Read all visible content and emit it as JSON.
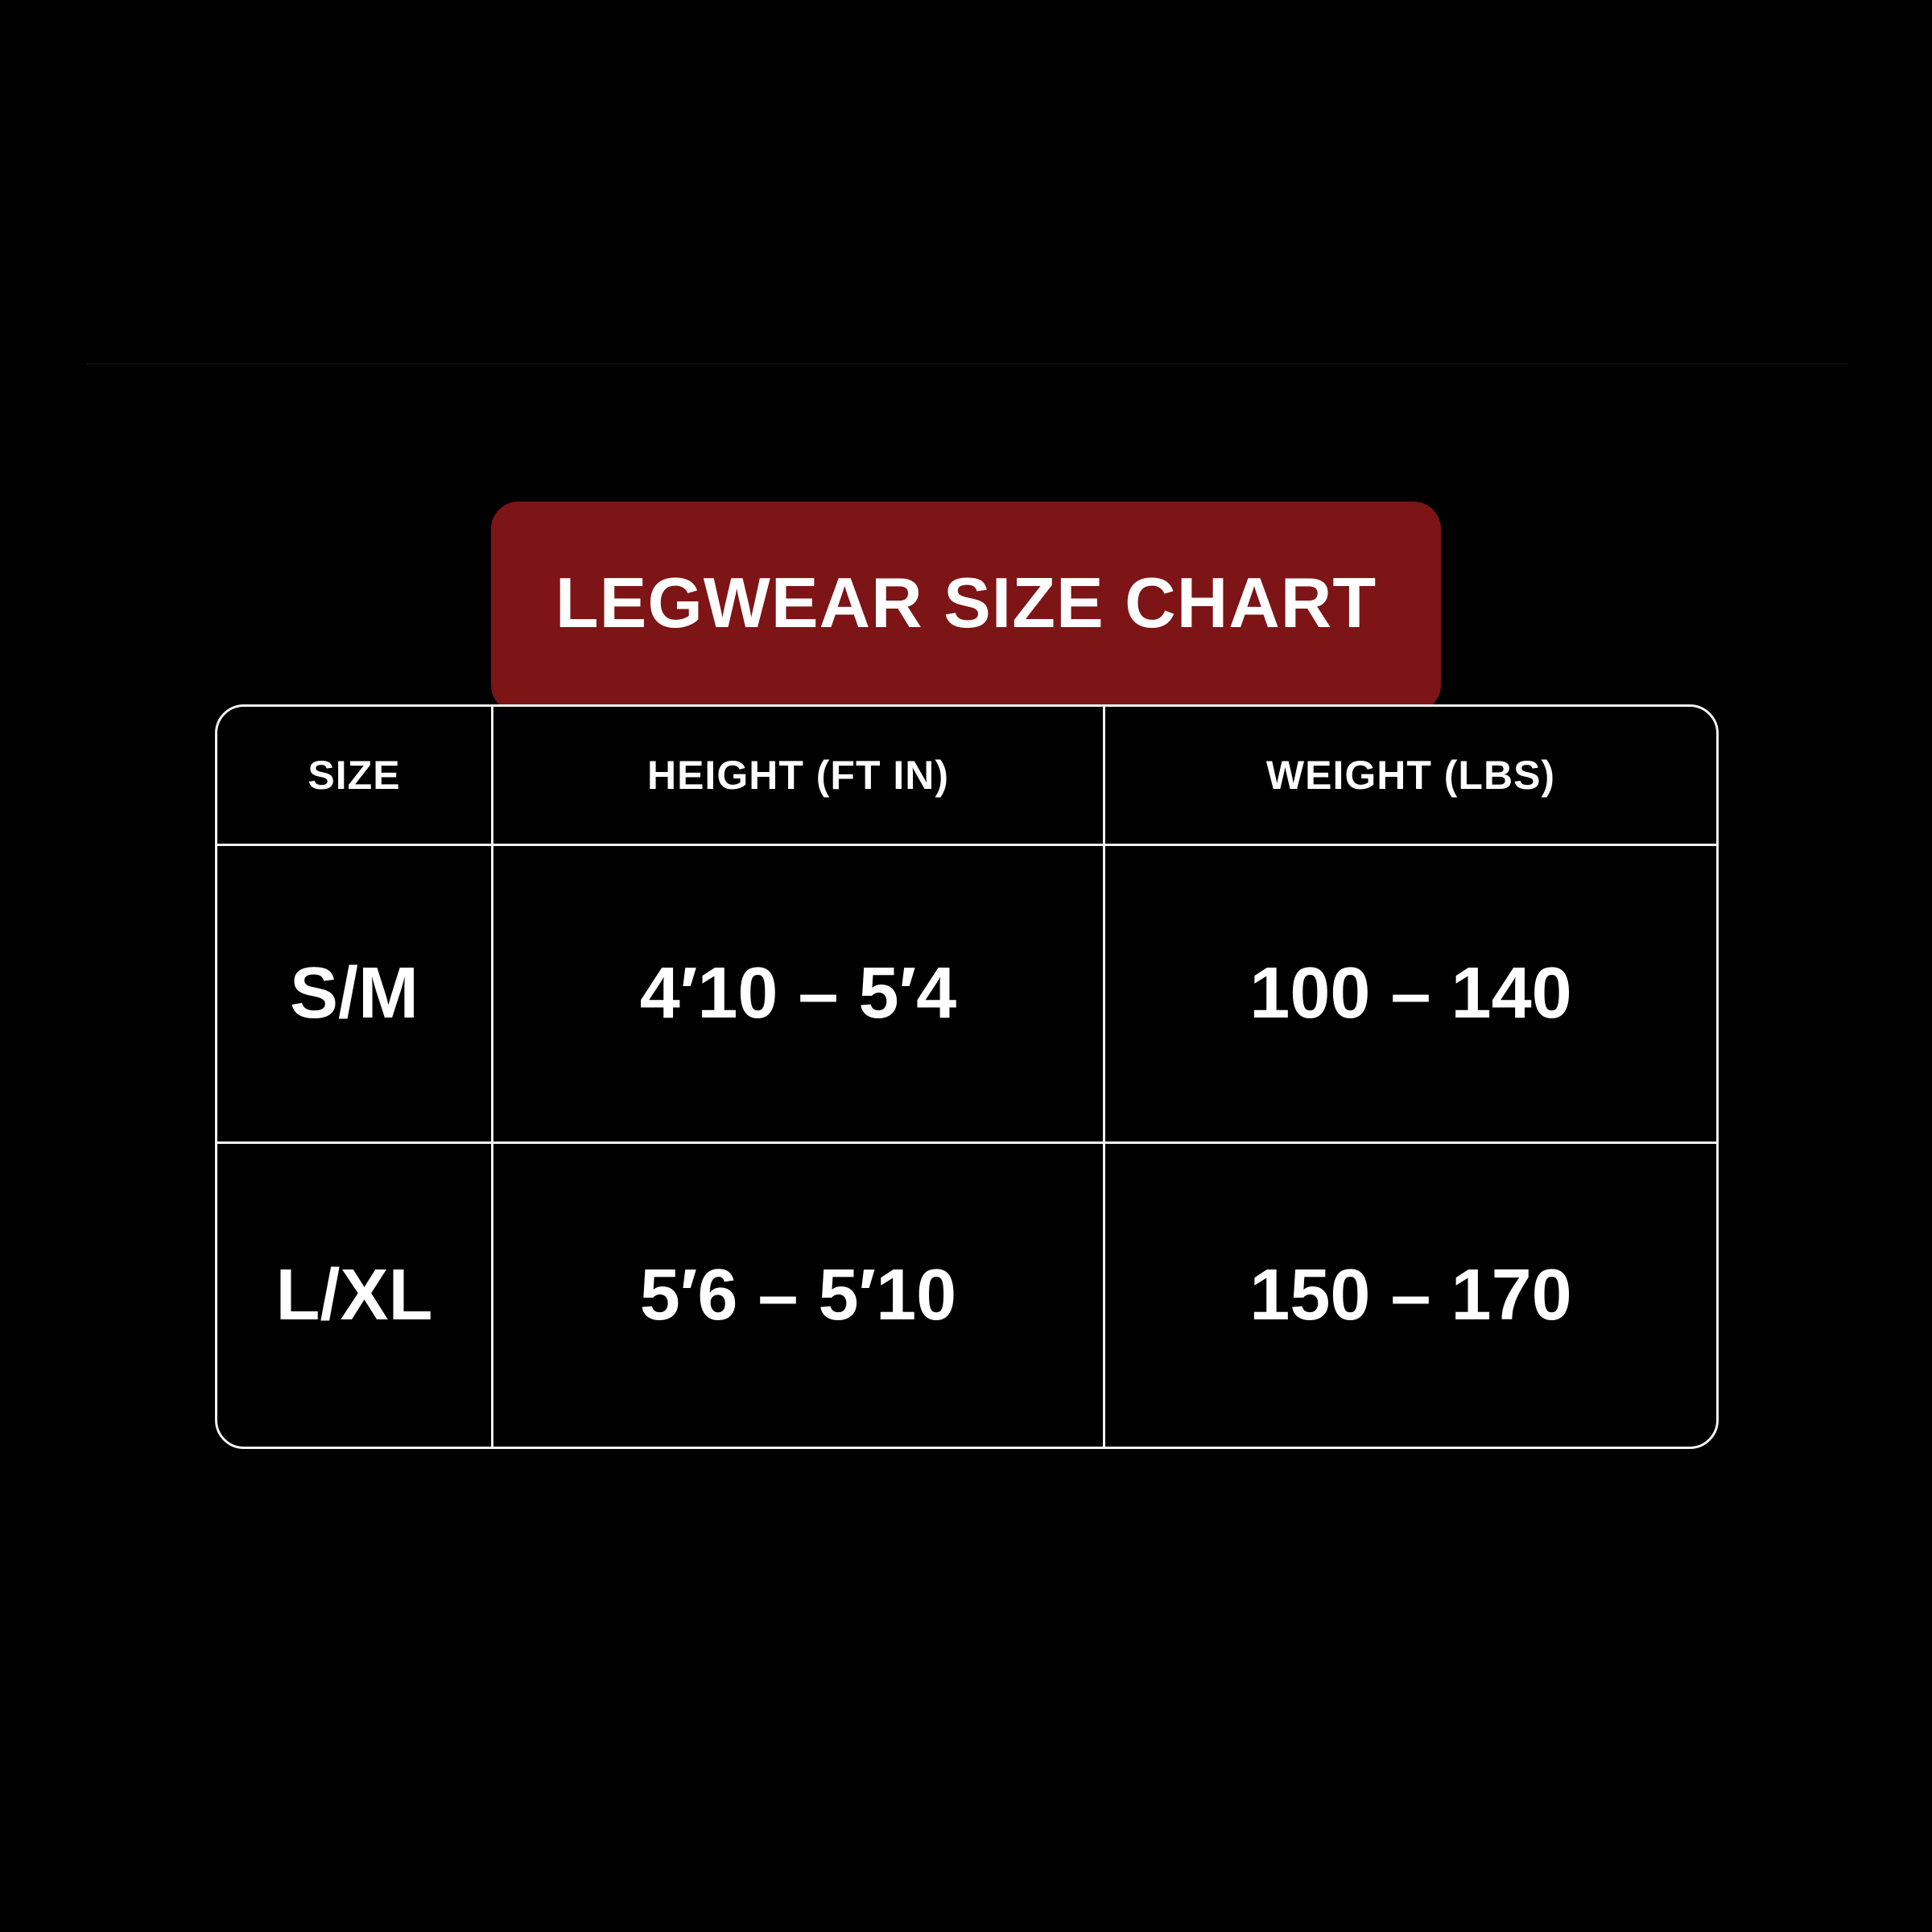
{
  "page": {
    "background_color": "#000000"
  },
  "banner": {
    "title": "LEGWEAR SIZE CHART",
    "background_color": "#7d1416",
    "text_color": "#ffffff"
  },
  "table": {
    "border_color": "#f2f2f2",
    "headers": [
      "SIZE",
      "HEIGHT (FT IN)",
      "WEIGHT (LBS)"
    ],
    "rows": [
      {
        "size": "S/M",
        "height": "4′10 – 5′4",
        "weight": "100 – 140"
      },
      {
        "size": "L/XL",
        "height": "5′6 – 5′10",
        "weight": "150 – 170"
      }
    ]
  },
  "chart_data": {
    "type": "table",
    "title": "LEGWEAR SIZE CHART",
    "columns": [
      "SIZE",
      "HEIGHT (FT IN)",
      "WEIGHT (LBS)"
    ],
    "rows": [
      [
        "S/M",
        "4′10 – 5′4",
        "100 – 140"
      ],
      [
        "L/XL",
        "5′6 – 5′10",
        "150 – 170"
      ]
    ],
    "notes": "Size chart table on black background with dark-red title banner; white grid lines; rounded outer corners"
  }
}
